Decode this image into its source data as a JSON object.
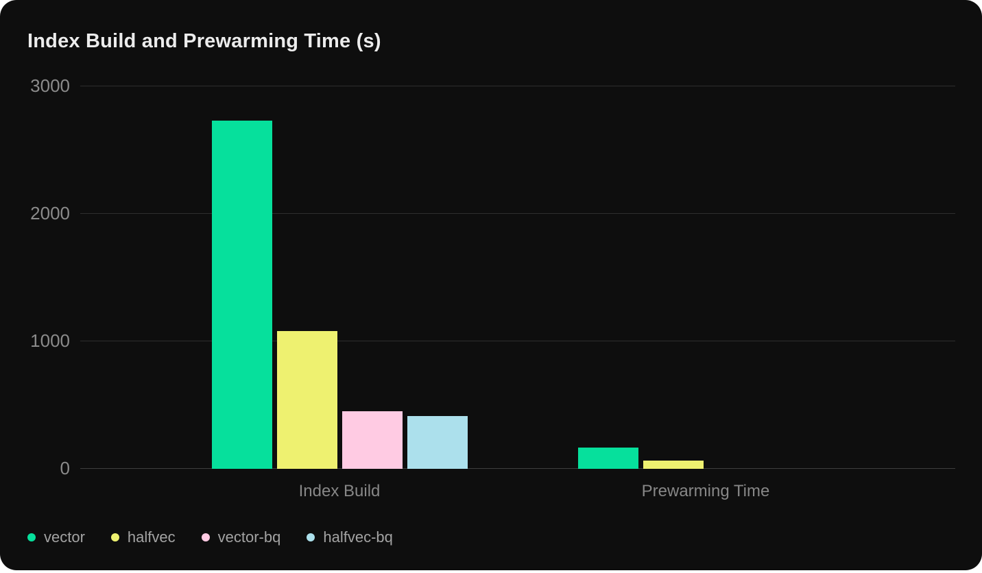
{
  "title": "Index Build and Prewarming Time (s)",
  "colors": {
    "card_background": "#0e0e0e",
    "page_background": "#ffffff",
    "title_text": "#ececec",
    "axis_text": "#8b8b8b",
    "legend_text": "#a3a3a3",
    "gridline": "#2e2e2e"
  },
  "chart_data": {
    "type": "bar",
    "title": "Index Build and Prewarming Time (s)",
    "categories": [
      "Index Build",
      "Prewarming Time"
    ],
    "series": [
      {
        "name": "vector",
        "color": "#06e09c",
        "values": [
          2730,
          165
        ]
      },
      {
        "name": "halfvec",
        "color": "#eef170",
        "values": [
          1080,
          65
        ]
      },
      {
        "name": "vector-bq",
        "color": "#ffcbe3",
        "values": [
          450,
          0
        ]
      },
      {
        "name": "halfvec-bq",
        "color": "#ace0ec",
        "values": [
          415,
          0
        ]
      }
    ],
    "xlabel": "",
    "ylabel": "",
    "ylim": [
      0,
      3000
    ],
    "yticks": [
      0,
      1000,
      2000,
      3000
    ],
    "grid": "horizontal-only",
    "legend_position": "bottom-left",
    "legend": [
      "vector",
      "halfvec",
      "vector-bq",
      "halfvec-bq"
    ]
  }
}
